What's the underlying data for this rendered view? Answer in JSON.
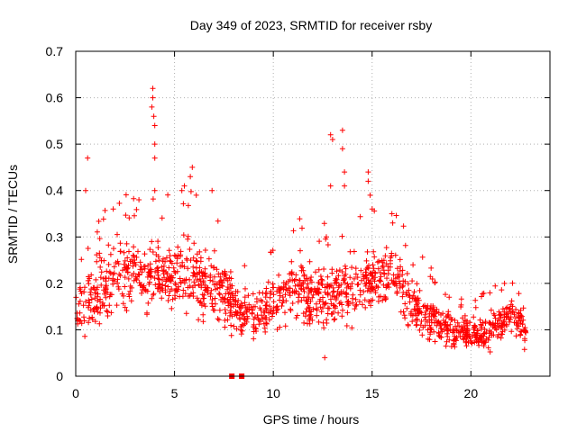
{
  "chart_data": {
    "type": "scatter",
    "title": "Day 349 of 2023, SRMTID for receiver rsby",
    "xlabel": "GPS time / hours",
    "ylabel": "SRMTID / TECUs",
    "xlim": [
      0,
      24
    ],
    "ylim": [
      0,
      0.7
    ],
    "xticks": [
      0,
      5,
      10,
      15,
      20
    ],
    "yticks": [
      0,
      0.1,
      0.2,
      0.3,
      0.4,
      0.5,
      0.6,
      0.7
    ],
    "xtick_labels": [
      "0",
      "5",
      "10",
      "15",
      "20"
    ],
    "ytick_labels": [
      "0",
      "0.1",
      "0.2",
      "0.3",
      "0.4",
      "0.5",
      "0.6",
      "0.7"
    ],
    "grid": true,
    "marker": "+",
    "series_color": "#ff0000",
    "gap_markers": {
      "x": [
        7.9,
        8.4
      ],
      "y": 0
    },
    "envelope": [
      {
        "x": 0.0,
        "mean": 0.14,
        "spread": 0.05
      },
      {
        "x": 1.0,
        "mean": 0.17,
        "spread": 0.07
      },
      {
        "x": 2.0,
        "mean": 0.22,
        "spread": 0.08
      },
      {
        "x": 3.0,
        "mean": 0.22,
        "spread": 0.08
      },
      {
        "x": 4.0,
        "mean": 0.22,
        "spread": 0.08
      },
      {
        "x": 5.0,
        "mean": 0.22,
        "spread": 0.08
      },
      {
        "x": 6.0,
        "mean": 0.22,
        "spread": 0.08
      },
      {
        "x": 7.0,
        "mean": 0.19,
        "spread": 0.07
      },
      {
        "x": 7.8,
        "mean": 0.17,
        "spread": 0.06
      },
      {
        "x": 8.0,
        "mean": 0.14,
        "spread": 0.05
      },
      {
        "x": 9.0,
        "mean": 0.13,
        "spread": 0.05
      },
      {
        "x": 10.0,
        "mean": 0.16,
        "spread": 0.06
      },
      {
        "x": 11.0,
        "mean": 0.2,
        "spread": 0.07
      },
      {
        "x": 12.0,
        "mean": 0.17,
        "spread": 0.07
      },
      {
        "x": 13.0,
        "mean": 0.18,
        "spread": 0.07
      },
      {
        "x": 14.0,
        "mean": 0.19,
        "spread": 0.07
      },
      {
        "x": 15.0,
        "mean": 0.2,
        "spread": 0.07
      },
      {
        "x": 16.0,
        "mean": 0.22,
        "spread": 0.07
      },
      {
        "x": 17.0,
        "mean": 0.15,
        "spread": 0.06
      },
      {
        "x": 18.0,
        "mean": 0.12,
        "spread": 0.05
      },
      {
        "x": 19.0,
        "mean": 0.1,
        "spread": 0.04
      },
      {
        "x": 20.0,
        "mean": 0.09,
        "spread": 0.03
      },
      {
        "x": 21.0,
        "mean": 0.1,
        "spread": 0.04
      },
      {
        "x": 22.0,
        "mean": 0.13,
        "spread": 0.04
      },
      {
        "x": 22.8,
        "mean": 0.1,
        "spread": 0.04
      }
    ],
    "peaks": [
      {
        "x": 0.6,
        "y": 0.47
      },
      {
        "x": 0.5,
        "y": 0.4
      },
      {
        "x": 1.9,
        "y": 0.36
      },
      {
        "x": 3.2,
        "y": 0.38
      },
      {
        "x": 3.9,
        "y": 0.62
      },
      {
        "x": 3.9,
        "y": 0.6
      },
      {
        "x": 3.85,
        "y": 0.58
      },
      {
        "x": 3.95,
        "y": 0.56
      },
      {
        "x": 4.0,
        "y": 0.54
      },
      {
        "x": 4.0,
        "y": 0.5
      },
      {
        "x": 4.0,
        "y": 0.47
      },
      {
        "x": 4.0,
        "y": 0.4
      },
      {
        "x": 5.5,
        "y": 0.41
      },
      {
        "x": 5.8,
        "y": 0.43
      },
      {
        "x": 5.9,
        "y": 0.45
      },
      {
        "x": 6.1,
        "y": 0.39
      },
      {
        "x": 6.9,
        "y": 0.4
      },
      {
        "x": 12.9,
        "y": 0.52
      },
      {
        "x": 13.0,
        "y": 0.51
      },
      {
        "x": 12.9,
        "y": 0.41
      },
      {
        "x": 13.5,
        "y": 0.53
      },
      {
        "x": 13.5,
        "y": 0.49
      },
      {
        "x": 13.6,
        "y": 0.44
      },
      {
        "x": 13.6,
        "y": 0.41
      },
      {
        "x": 14.8,
        "y": 0.44
      },
      {
        "x": 14.8,
        "y": 0.42
      },
      {
        "x": 14.9,
        "y": 0.39
      },
      {
        "x": 15.0,
        "y": 0.36
      },
      {
        "x": 16.0,
        "y": 0.35
      },
      {
        "x": 21.7,
        "y": 0.2
      },
      {
        "x": 12.6,
        "y": 0.04
      }
    ]
  }
}
